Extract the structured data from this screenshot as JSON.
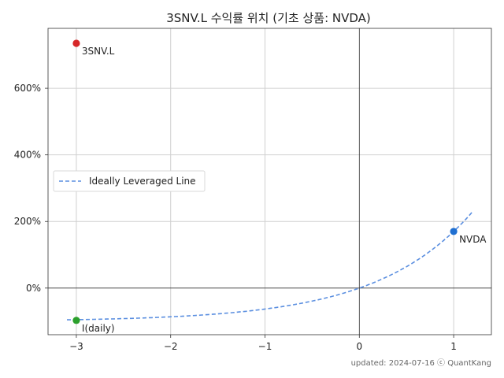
{
  "chart_data": {
    "type": "scatter",
    "title": "3SNV.L 수익률 위치 (기초 상품: NVDA)",
    "xlim": [
      -3.3,
      1.4
    ],
    "ylim": [
      -140,
      780
    ],
    "x_ticks": [
      -3,
      -2,
      -1,
      0,
      1
    ],
    "x_tick_labels": [
      "−3",
      "−2",
      "−1",
      "0",
      "1"
    ],
    "y_ticks": [
      0,
      200,
      400,
      600
    ],
    "y_tick_labels": [
      "0%",
      "200%",
      "400%",
      "600%"
    ],
    "grid": true,
    "legend_position": "center-left",
    "series": [
      {
        "name": "Ideally Leveraged Line",
        "type": "line",
        "style": "dashed",
        "color": "#5b8fe0",
        "x_range": [
          -3.1,
          1.2
        ],
        "underlying_return": 1.7
      }
    ],
    "points": [
      {
        "label": "3SNV.L",
        "x": -3,
        "y": 735,
        "color": "#d62728"
      },
      {
        "label": "NVDA",
        "x": 1,
        "y": 170,
        "color": "#1f6fd1"
      },
      {
        "label": "I(daily)",
        "x": -3,
        "y": -97,
        "color": "#2ca02c"
      }
    ],
    "footer": "updated: 2024-07-16 ⓒ QuantKang"
  }
}
